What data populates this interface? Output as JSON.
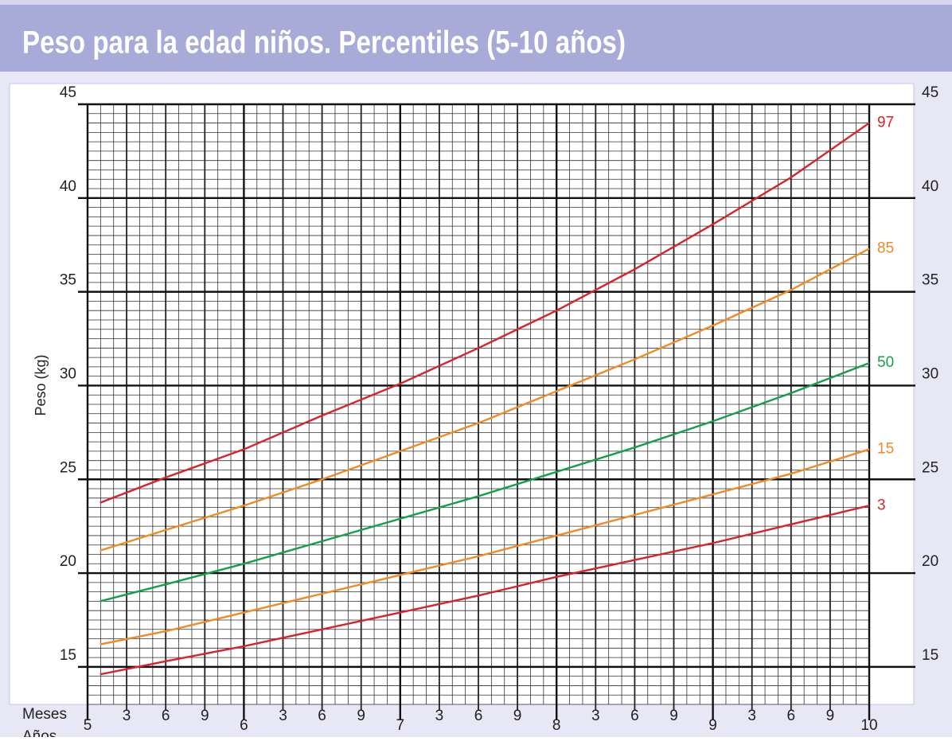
{
  "chart_data": {
    "type": "line",
    "title": "Peso para la edad niños. Percentiles (5-10 años)",
    "y_label": "Peso (kg)",
    "month_axis_label": "Meses",
    "year_axis_label": "Años",
    "x": [
      5.08,
      5.5,
      6,
      6.5,
      7,
      7.5,
      8,
      8.5,
      9,
      9.5,
      10
    ],
    "series": [
      {
        "name": "97",
        "color": "#d8232a",
        "values": [
          23.75,
          25.1,
          26.6,
          28.4,
          30.1,
          32.0,
          34.0,
          36.2,
          38.6,
          41.1,
          44.0
        ]
      },
      {
        "name": "85",
        "color": "#f18a22",
        "values": [
          21.2,
          22.3,
          23.6,
          25.0,
          26.5,
          28.0,
          29.7,
          31.4,
          33.2,
          35.1,
          37.3
        ]
      },
      {
        "name": "50",
        "color": "#14a04a",
        "values": [
          18.5,
          19.4,
          20.5,
          21.7,
          22.9,
          24.1,
          25.4,
          26.7,
          28.1,
          29.6,
          31.2
        ]
      },
      {
        "name": "15",
        "color": "#f18a22",
        "values": [
          16.2,
          16.9,
          17.9,
          18.9,
          19.9,
          20.9,
          22.0,
          23.1,
          24.2,
          25.3,
          26.6
        ]
      },
      {
        "name": "3",
        "color": "#d8232a",
        "values": [
          14.6,
          15.3,
          16.1,
          17.0,
          17.9,
          18.8,
          19.8,
          20.7,
          21.6,
          22.6,
          23.6
        ]
      }
    ],
    "xlim": [
      5,
      10
    ],
    "year_ticks": [
      5,
      6,
      7,
      8,
      9,
      10
    ],
    "month_ticks": [
      {
        "value": 5.25,
        "label": "3"
      },
      {
        "value": 5.5,
        "label": "6"
      },
      {
        "value": 5.75,
        "label": "9"
      },
      {
        "value": 6.25,
        "label": "3"
      },
      {
        "value": 6.5,
        "label": "6"
      },
      {
        "value": 6.75,
        "label": "9"
      },
      {
        "value": 7.25,
        "label": "3"
      },
      {
        "value": 7.5,
        "label": "6"
      },
      {
        "value": 7.75,
        "label": "9"
      },
      {
        "value": 8.25,
        "label": "3"
      },
      {
        "value": 8.5,
        "label": "6"
      },
      {
        "value": 8.75,
        "label": "9"
      },
      {
        "value": 9.25,
        "label": "3"
      },
      {
        "value": 9.5,
        "label": "6"
      },
      {
        "value": 9.75,
        "label": "9"
      }
    ],
    "ylim": [
      13,
      45
    ],
    "yticks": [
      15,
      20,
      25,
      30,
      35,
      40,
      45
    ],
    "grid": true
  }
}
